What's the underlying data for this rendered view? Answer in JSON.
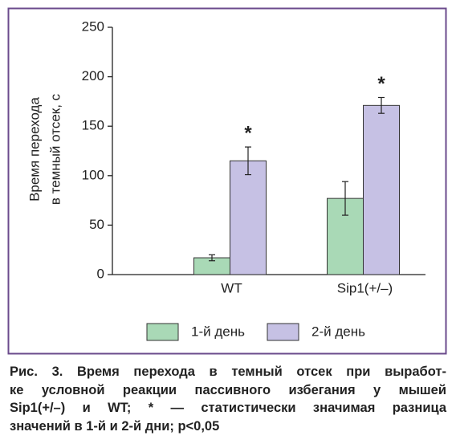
{
  "chart_data": {
    "type": "bar",
    "y_label": [
      "Время перехода",
      "в темный отсек, с"
    ],
    "categories": [
      "WT",
      "Sip1(+/–)"
    ],
    "series": [
      {
        "name": "1-й день",
        "color": "#a9d9b6",
        "values": [
          17,
          77
        ],
        "errors": [
          3,
          17
        ]
      },
      {
        "name": "2-й день",
        "color": "#c6c1e4",
        "values": [
          115,
          171
        ],
        "errors": [
          14,
          8
        ]
      }
    ],
    "annotations": [
      "*",
      "*"
    ],
    "ylim": [
      0,
      250
    ],
    "yticks": [
      0,
      50,
      100,
      150,
      200,
      250
    ]
  },
  "caption": {
    "lines": [
      "Рис. 3. Время перехода в темный отсек при выработ-",
      "ке условной реакции пассивного избегания у мышей",
      "Sip1(+/–) и WT; * — статистически значимая разница",
      "значений в 1-й и 2-й дни; p<0,05"
    ]
  }
}
